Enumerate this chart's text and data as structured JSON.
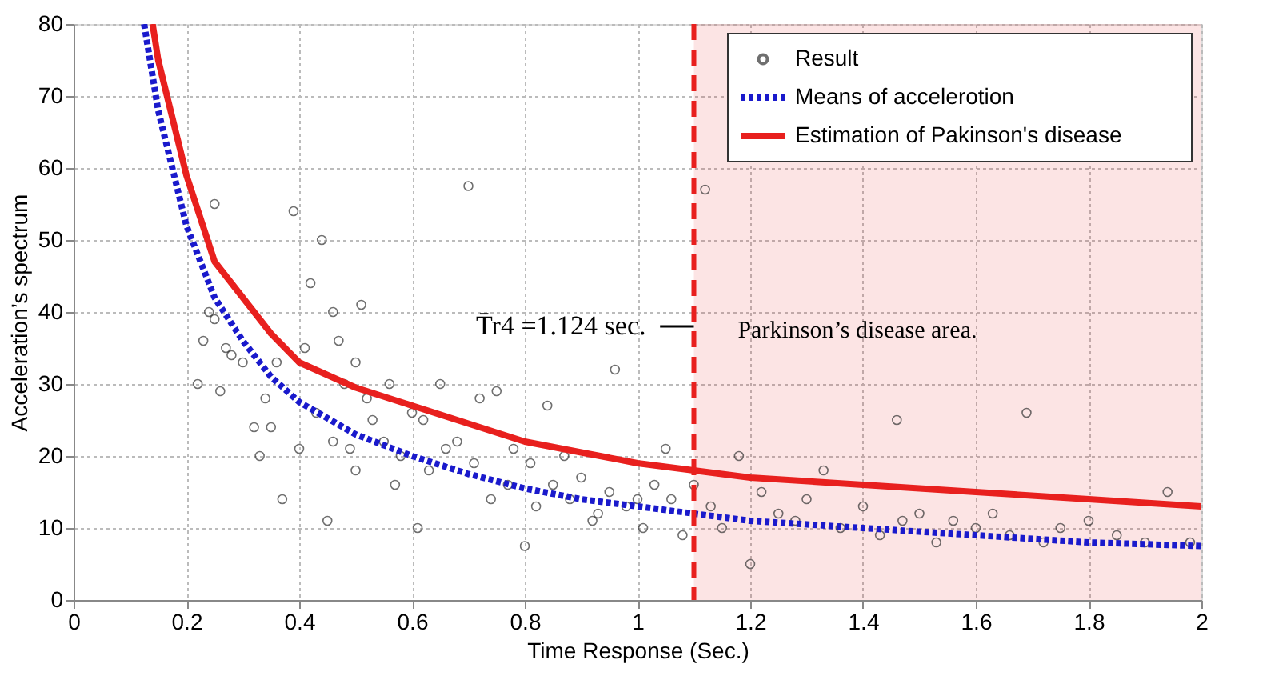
{
  "chart_data": {
    "type": "scatter",
    "xlabel": "Time Response (Sec.)",
    "ylabel": "Acceleration’s spectrum",
    "xlim": [
      0,
      2
    ],
    "xticks": [
      0,
      0.2,
      0.4,
      0.6,
      0.8,
      1,
      1.2,
      1.4,
      1.6,
      1.8,
      2
    ],
    "ylim": [
      0,
      80
    ],
    "yticks": [
      0,
      10,
      20,
      30,
      40,
      50,
      60,
      70,
      80
    ],
    "grid": true,
    "legend": "top right",
    "series": [
      {
        "name": "Result",
        "marker": "circle",
        "color": "#333333",
        "x": [
          0.22,
          0.23,
          0.24,
          0.25,
          0.25,
          0.26,
          0.27,
          0.28,
          0.3,
          0.32,
          0.33,
          0.34,
          0.35,
          0.36,
          0.37,
          0.39,
          0.4,
          0.41,
          0.42,
          0.43,
          0.44,
          0.45,
          0.46,
          0.46,
          0.47,
          0.48,
          0.49,
          0.5,
          0.5,
          0.51,
          0.52,
          0.53,
          0.55,
          0.56,
          0.57,
          0.58,
          0.6,
          0.61,
          0.62,
          0.63,
          0.65,
          0.66,
          0.68,
          0.7,
          0.71,
          0.72,
          0.74,
          0.75,
          0.77,
          0.78,
          0.8,
          0.81,
          0.82,
          0.84,
          0.85,
          0.87,
          0.88,
          0.9,
          0.92,
          0.93,
          0.95,
          0.96,
          0.98,
          1.0,
          1.01,
          1.03,
          1.05,
          1.06,
          1.08,
          1.1,
          1.12,
          1.13,
          1.15,
          1.18,
          1.2,
          1.22,
          1.25,
          1.28,
          1.3,
          1.33,
          1.36,
          1.4,
          1.43,
          1.46,
          1.47,
          1.5,
          1.53,
          1.56,
          1.6,
          1.63,
          1.66,
          1.69,
          1.72,
          1.75,
          1.8,
          1.85,
          1.9,
          1.94,
          1.98
        ],
        "values": [
          30,
          36,
          40,
          55,
          39,
          29,
          35,
          34,
          33,
          24,
          20,
          28,
          24,
          33,
          14,
          54,
          21,
          35,
          44,
          26,
          50,
          11,
          40,
          22,
          36,
          30,
          21,
          33,
          18,
          41,
          28,
          25,
          22,
          30,
          16,
          20,
          26,
          10,
          25,
          18,
          30,
          21,
          22,
          57.5,
          19,
          28,
          14,
          29,
          16,
          21,
          7.5,
          19,
          13,
          27,
          16,
          20,
          14,
          17,
          11,
          12,
          15,
          32,
          13,
          14,
          10,
          16,
          21,
          14,
          9,
          16,
          57,
          13,
          10,
          20,
          5,
          15,
          12,
          11,
          14,
          18,
          10,
          13,
          9,
          25,
          11,
          12,
          8,
          11,
          10,
          12,
          9,
          26,
          8,
          10,
          11,
          9,
          8,
          15,
          8
        ]
      },
      {
        "name": "Means of accelerotion",
        "type": "line",
        "line_style": "dotted",
        "color": "#1a1acc",
        "x": [
          0.125,
          0.15,
          0.2,
          0.25,
          0.3,
          0.35,
          0.4,
          0.5,
          0.6,
          0.7,
          0.8,
          0.9,
          1.0,
          1.1,
          1.2,
          1.4,
          1.6,
          1.8,
          2.0
        ],
        "values": [
          80,
          68,
          52,
          42,
          36,
          31,
          27.5,
          23,
          20,
          17.5,
          15.5,
          14,
          13,
          12,
          11,
          10,
          9,
          8,
          7.5
        ]
      },
      {
        "name": "Estimation of Pakinson's disease",
        "type": "line",
        "line_style": "solid",
        "color": "#e8201e",
        "x": [
          0.14,
          0.15,
          0.2,
          0.25,
          0.3,
          0.35,
          0.4,
          0.5,
          0.6,
          0.7,
          0.8,
          0.9,
          1.0,
          1.1,
          1.2,
          1.4,
          1.6,
          1.8,
          2.0
        ],
        "values": [
          80,
          75,
          59,
          47,
          42,
          37,
          33,
          29.5,
          27,
          24.5,
          22,
          20.5,
          19,
          18,
          17,
          16,
          15,
          14,
          13
        ]
      }
    ],
    "ref_lines": [
      {
        "axis": "x",
        "value": 1.1,
        "color": "#e8201e",
        "line_style": "dashed"
      }
    ],
    "bands": [
      {
        "axis": "x",
        "from": 1.1,
        "to": 2,
        "label": "Parkinson’s disease area.",
        "color": "#e8201e"
      }
    ],
    "annotations": [
      {
        "text": "T̄r4 =1.124 sec.",
        "x": 1.1,
        "y": 38
      }
    ]
  }
}
